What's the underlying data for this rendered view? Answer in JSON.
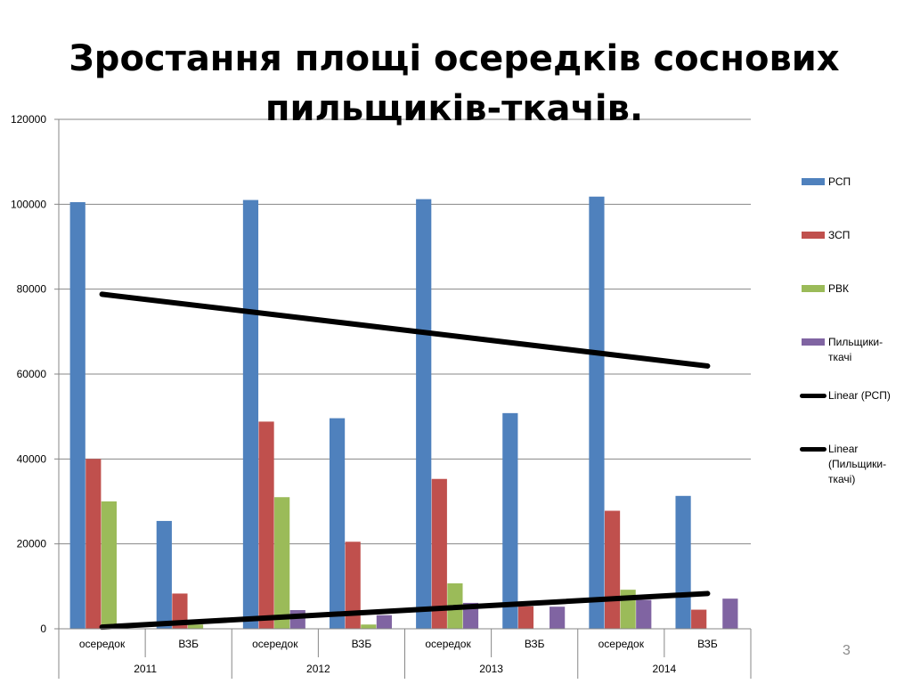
{
  "slide": {
    "title_line1": "Зростання площі осередків соснових",
    "title_line2": "пильщиків-ткачів.",
    "page_number": "3"
  },
  "chart_data": {
    "type": "bar",
    "title": "Зростання площі осередків соснових пильщиків-ткачів.",
    "ylim": [
      0,
      120000
    ],
    "y_ticks": [
      "0",
      "20000",
      "40000",
      "60000",
      "80000",
      "100000",
      "120000"
    ],
    "grid": true,
    "legend_position": "right",
    "categories": [
      {
        "year": "2011",
        "label": "осередок"
      },
      {
        "year": "2011",
        "label": "ВЗБ"
      },
      {
        "year": "2012",
        "label": "осередок"
      },
      {
        "year": "2012",
        "label": "ВЗБ"
      },
      {
        "year": "2013",
        "label": "осередок"
      },
      {
        "year": "2013",
        "label": "ВЗБ"
      },
      {
        "year": "2014",
        "label": "осередок"
      },
      {
        "year": "2014",
        "label": "ВЗБ"
      }
    ],
    "years": [
      "2011",
      "2012",
      "2013",
      "2014"
    ],
    "series": [
      {
        "name": "РСП",
        "color": "#4f81bd",
        "values": [
          100500,
          25400,
          101000,
          49600,
          101200,
          50800,
          101800,
          31300
        ]
      },
      {
        "name": "ЗСП",
        "color": "#c0504d",
        "values": [
          40000,
          8300,
          48800,
          20500,
          35300,
          5300,
          27800,
          4500
        ]
      },
      {
        "name": "РВК",
        "color": "#9bbb59",
        "values": [
          30000,
          1000,
          31000,
          1000,
          10700,
          0,
          9200,
          0
        ]
      },
      {
        "name": "Пильщики-ткачі",
        "color": "#8064a2",
        "values": [
          0,
          0,
          4400,
          3200,
          6100,
          5200,
          6800,
          7100
        ]
      }
    ],
    "trendlines": [
      {
        "name": "Linear (РСП)",
        "color": "#000000",
        "start": 78800,
        "end": 61900
      },
      {
        "name": "Linear (Пильщики-ткачі)",
        "color": "#000000",
        "start": 400,
        "end": 8300
      }
    ],
    "legend_labels": {
      "rsp": "РСП",
      "zsp": "ЗСП",
      "rvk": "РВК",
      "pt_line1": "Пильщики-",
      "pt_line2": "ткачі",
      "lin_rsp": "Linear (РСП)",
      "lin_pt_line1": "Linear",
      "lin_pt_line2": "(Пильщики-",
      "lin_pt_line3": "ткачі)"
    }
  }
}
